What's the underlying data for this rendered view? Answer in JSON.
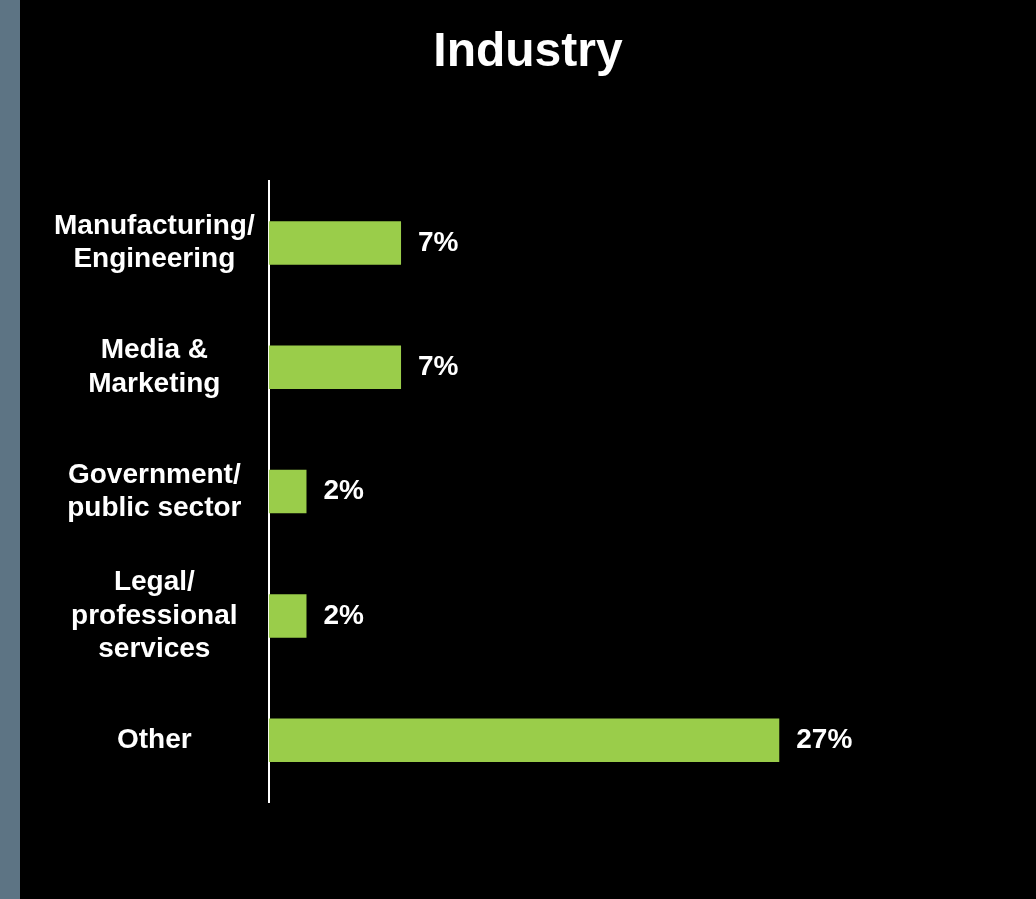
{
  "chart_data": {
    "type": "bar",
    "title": "Industry",
    "orientation": "horizontal",
    "categories": [
      "Manufacturing/ Engineering",
      "Media & Marketing",
      "Government/ public sector",
      "Legal/ professional services",
      "Other"
    ],
    "values": [
      7,
      7,
      2,
      2,
      27
    ],
    "value_labels": [
      "7%",
      "7%",
      "2%",
      "2%",
      "27%"
    ],
    "color": "#9acd4a"
  }
}
